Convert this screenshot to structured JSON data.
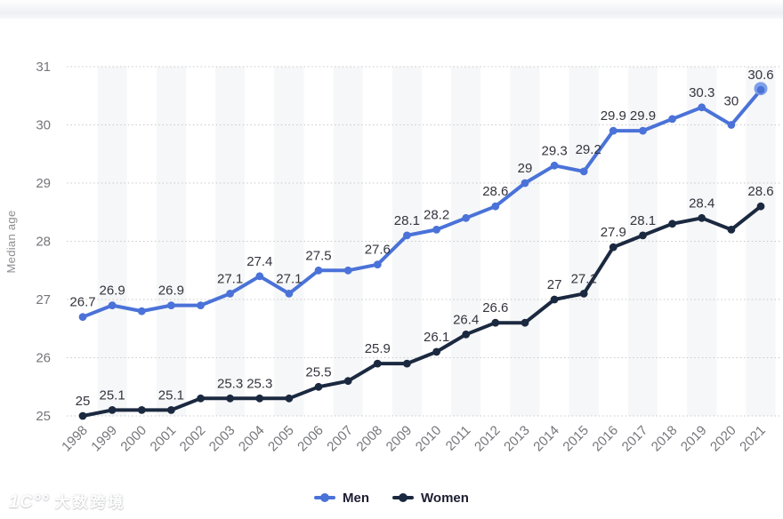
{
  "watermark": {
    "logo_mark": "1C°°",
    "text": "大数跨境"
  },
  "chart_data": {
    "type": "line",
    "title": "",
    "xlabel": "",
    "ylabel": "Median age",
    "categories": [
      "1998",
      "1999",
      "2000",
      "2001",
      "2002",
      "2003",
      "2004",
      "2005",
      "2006",
      "2007",
      "2008",
      "2009",
      "2010",
      "2011",
      "2012",
      "2013",
      "2014",
      "2015",
      "2016",
      "2017",
      "2018",
      "2019",
      "2020",
      "2021"
    ],
    "ylim": [
      25,
      31
    ],
    "yticks": [
      31,
      30,
      29,
      28,
      27,
      26,
      25
    ],
    "grid": "horizontal-dotted",
    "alternating_bands": true,
    "band_color": "#f6f7f8",
    "gridline_color": "#c9c9c9",
    "tick_color": "#75767b",
    "axis_label_color": "#8e8e92",
    "data_label_color": "#34343e",
    "legend_position": "bottom-center",
    "series": [
      {
        "name": "Men",
        "color": "#4a72d8",
        "highlight_last_point": true,
        "highlight_color": "#7fa0e9",
        "values": [
          26.7,
          26.9,
          26.8,
          26.9,
          26.9,
          27.1,
          27.4,
          27.1,
          27.5,
          27.5,
          27.6,
          28.1,
          28.2,
          28.4,
          28.6,
          29,
          29.3,
          29.2,
          29.9,
          29.9,
          30.1,
          30.3,
          30,
          30.6
        ],
        "point_labels": [
          "26.7",
          "26.9",
          "",
          "26.9",
          "",
          "27.1",
          "27.4",
          "27.1",
          "27.5",
          "",
          "27.6",
          "28.1",
          "28.2",
          "",
          "28.6",
          "29",
          "29.3",
          "29.2",
          "29.9",
          "29.9",
          "",
          "30.3",
          "30",
          "30.6"
        ],
        "label_offsets": {
          "17": [
            5,
            -8
          ],
          "22": [
            0,
            -10
          ]
        }
      },
      {
        "name": "Women",
        "color": "#1b2940",
        "highlight_last_point": false,
        "highlight_color": "#1b2940",
        "values": [
          25,
          25.1,
          25.1,
          25.1,
          25.3,
          25.3,
          25.3,
          25.3,
          25.5,
          25.6,
          25.9,
          25.9,
          26.1,
          26.4,
          26.6,
          26.6,
          27,
          27.1,
          27.9,
          28.1,
          28.3,
          28.4,
          28.2,
          28.6
        ],
        "point_labels": [
          "25",
          "25.1",
          "",
          "25.1",
          "",
          "25.3",
          "25.3",
          "",
          "25.5",
          "",
          "25.9",
          "",
          "26.1",
          "26.4",
          "26.6",
          "",
          "27",
          "27.1",
          "27.9",
          "28.1",
          "",
          "28.4",
          "",
          "28.6"
        ],
        "label_offsets": {}
      }
    ]
  }
}
